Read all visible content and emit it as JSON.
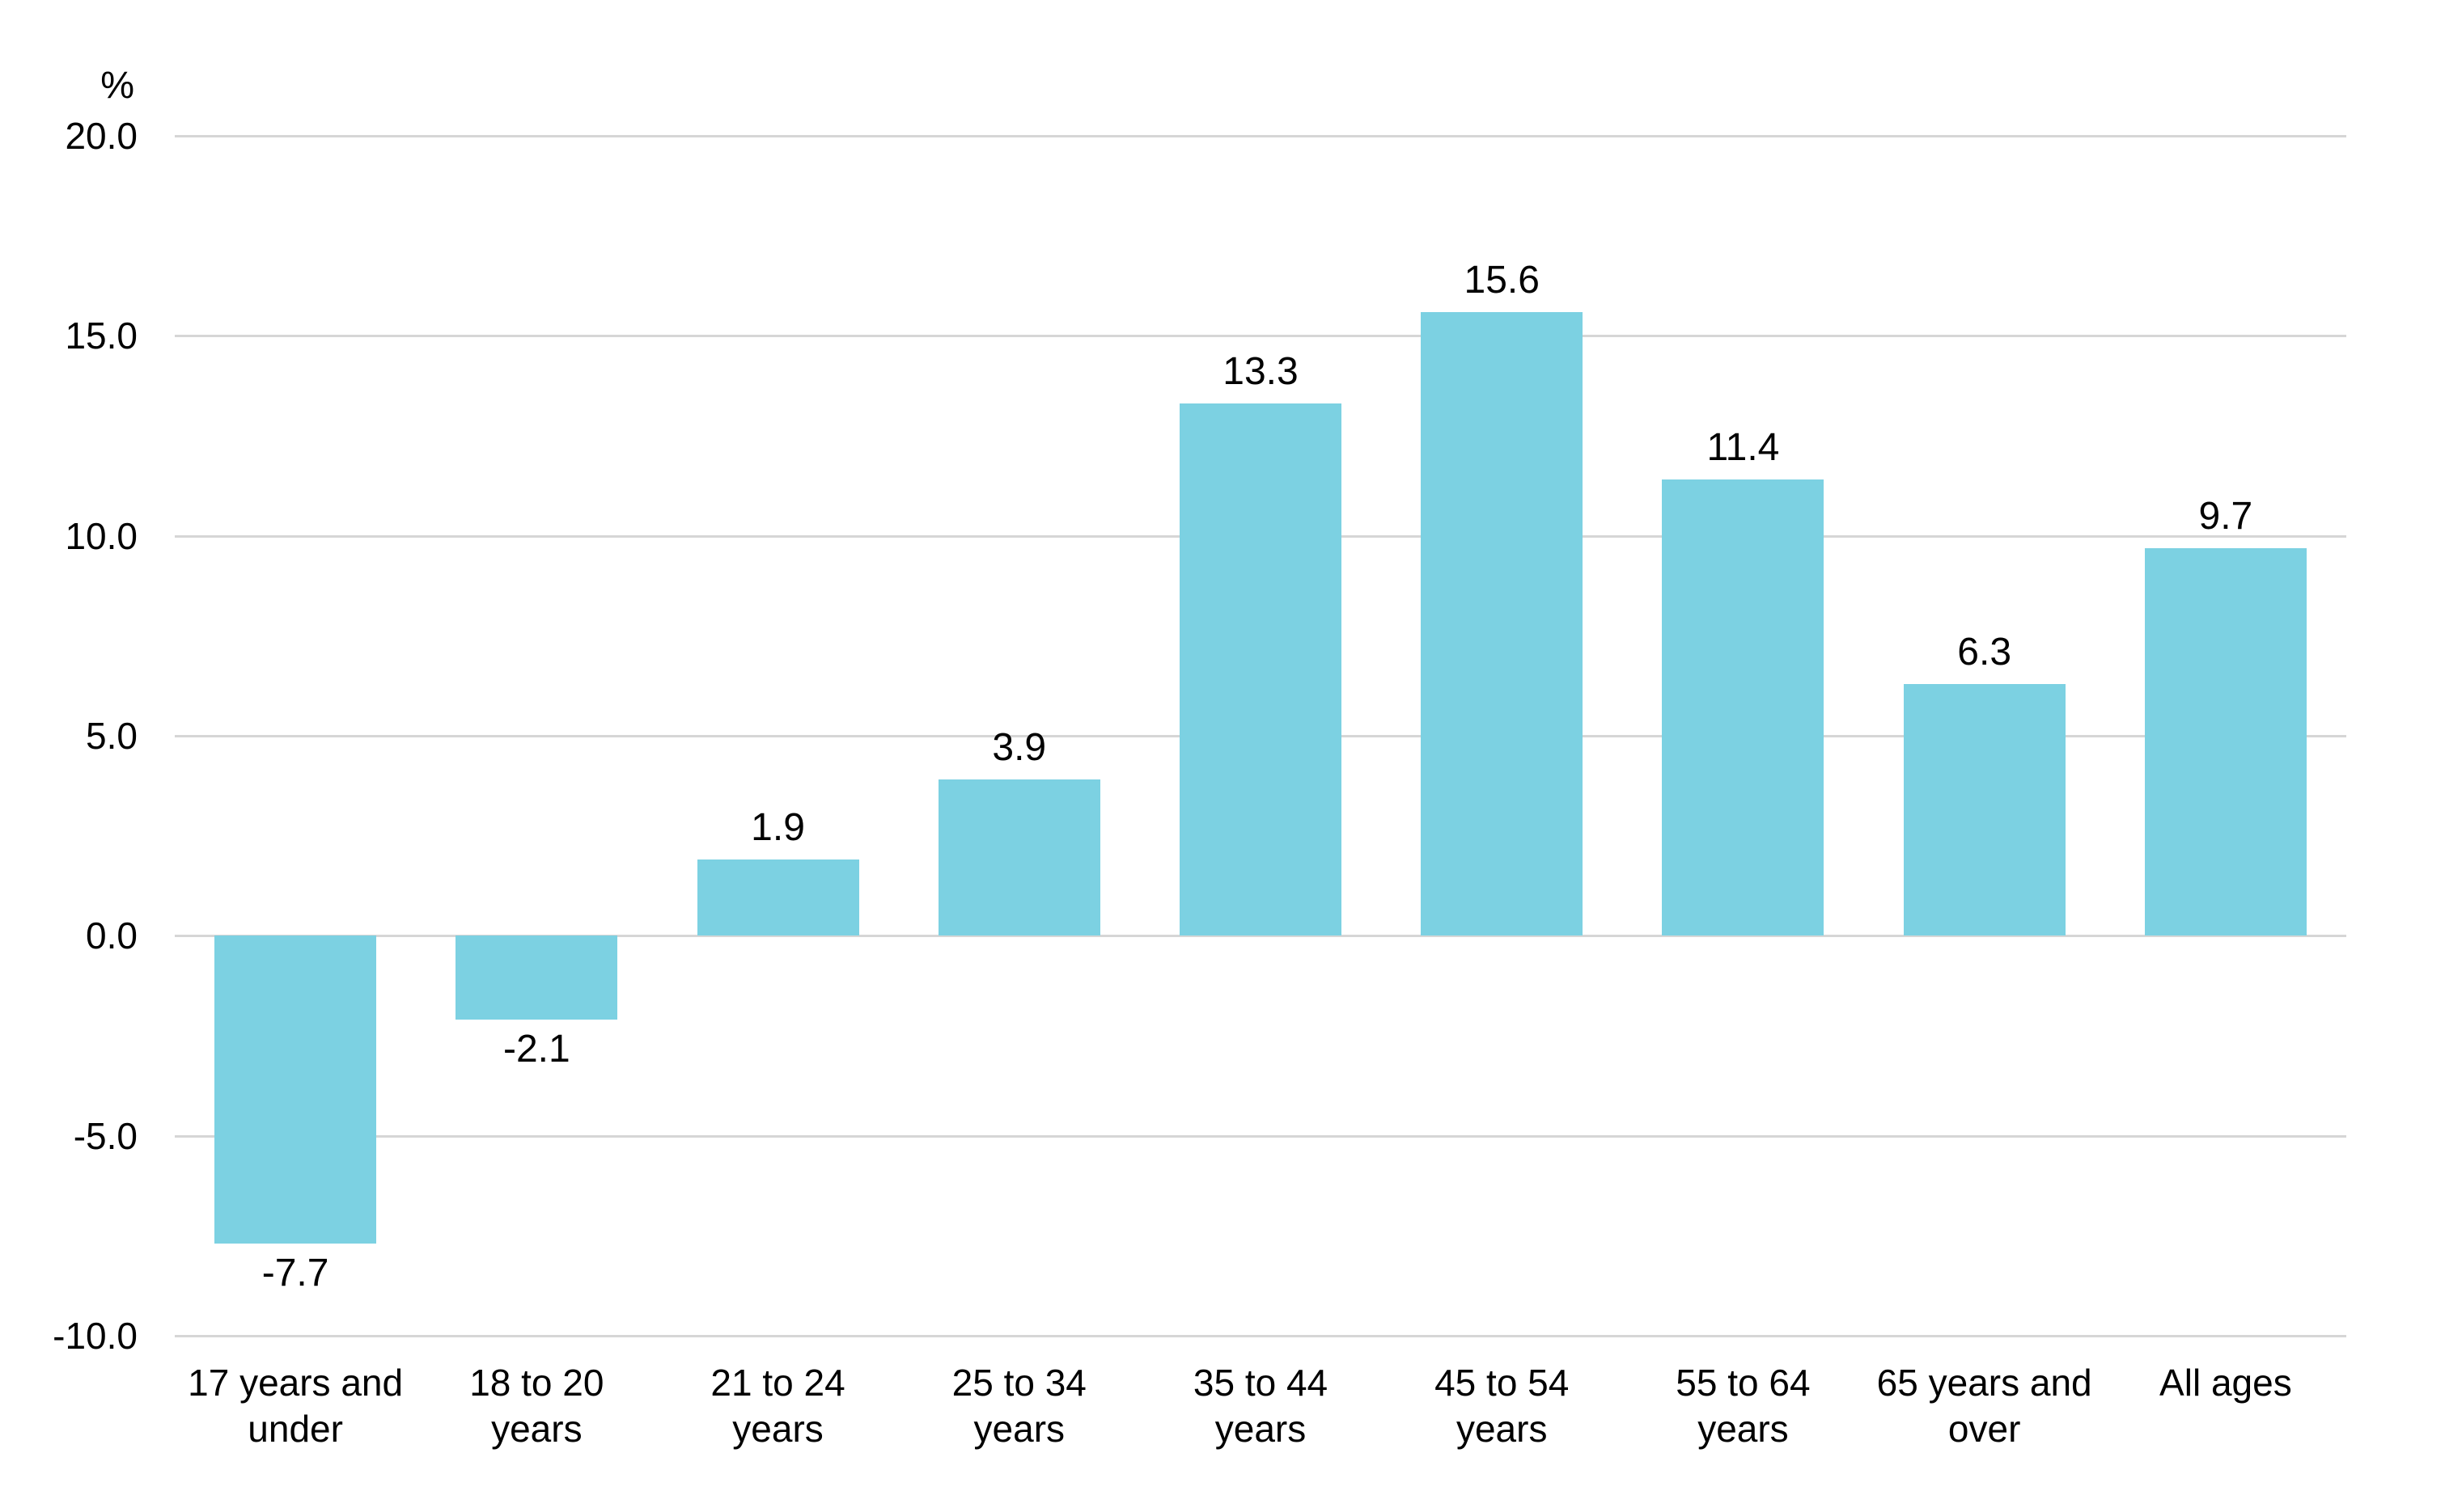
{
  "chart_data": {
    "type": "bar",
    "title": "",
    "xlabel": "",
    "ylabel": "%",
    "ylim": [
      -10,
      20
    ],
    "yticks": [
      20,
      15,
      10,
      5,
      0,
      -5,
      -10
    ],
    "ytick_labels": [
      "20.0",
      "15.0",
      "10.0",
      "5.0",
      "0.0",
      "-5.0",
      "-10.0"
    ],
    "categories": [
      "17 years and under",
      "18 to 20 years",
      "21 to 24 years",
      "25 to 34 years",
      "35 to 44 years",
      "45 to 54 years",
      "55 to 64 years",
      "65 years and over",
      "All ages"
    ],
    "category_lines": [
      [
        "17 years and",
        "under"
      ],
      [
        "18 to 20",
        "years"
      ],
      [
        "21 to 24",
        "years"
      ],
      [
        "25 to 34",
        "years"
      ],
      [
        "35 to 44",
        "years"
      ],
      [
        "45 to 54",
        "years"
      ],
      [
        "55 to 64",
        "years"
      ],
      [
        "65 years and",
        "over"
      ],
      [
        "All ages"
      ]
    ],
    "values": [
      -7.7,
      -2.1,
      1.9,
      3.9,
      13.3,
      15.6,
      11.4,
      6.3,
      9.7
    ],
    "value_labels": [
      "-7.7",
      "-2.1",
      "1.9",
      "3.9",
      "13.3",
      "15.6",
      "11.4",
      "6.3",
      "9.7"
    ],
    "grid": true,
    "legend_position": "none",
    "colors": {
      "bar": "#7CD1E2",
      "gridline": "#D6D6D6",
      "text": "#000000",
      "background": "#FFFFFF"
    }
  }
}
